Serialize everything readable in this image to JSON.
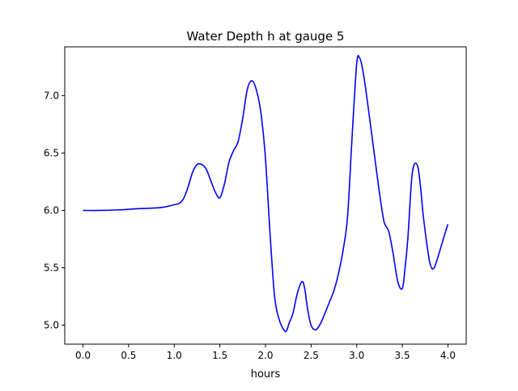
{
  "chart_data": {
    "type": "line",
    "title": "Water Depth h at gauge 5",
    "xlabel": "hours",
    "ylabel": "",
    "xlim": [
      -0.2,
      4.2
    ],
    "ylim": [
      4.835,
      7.425
    ],
    "xticks": [
      0.0,
      0.5,
      1.0,
      1.5,
      2.0,
      2.5,
      3.0,
      3.5,
      4.0
    ],
    "xtick_labels": [
      "0.0",
      "0.5",
      "1.0",
      "1.5",
      "2.0",
      "2.5",
      "3.0",
      "3.5",
      "4.0"
    ],
    "yticks": [
      5.0,
      5.5,
      6.0,
      6.5,
      7.0
    ],
    "ytick_labels": [
      "5.0",
      "5.5",
      "6.0",
      "6.5",
      "7.0"
    ],
    "grid": false,
    "color": "#0000ff",
    "series": [
      {
        "x": [
          0.0,
          0.2,
          0.4,
          0.6,
          0.85,
          1.0,
          1.05,
          1.1,
          1.15,
          1.2,
          1.25,
          1.3,
          1.35,
          1.4,
          1.45,
          1.5,
          1.55,
          1.6,
          1.65,
          1.7,
          1.75,
          1.8,
          1.85,
          1.9,
          1.95,
          2.0,
          2.05,
          2.1,
          2.15,
          2.2,
          2.23,
          2.26,
          2.3,
          2.35,
          2.4,
          2.43,
          2.46,
          2.5,
          2.55,
          2.6,
          2.65,
          2.7,
          2.75,
          2.8,
          2.85,
          2.9,
          2.95,
          3.0,
          3.03,
          3.06,
          3.1,
          3.15,
          3.2,
          3.25,
          3.3,
          3.35,
          3.4,
          3.45,
          3.5,
          3.53,
          3.56,
          3.6,
          3.63,
          3.67,
          3.7,
          3.73,
          3.77,
          3.8,
          3.83,
          3.86,
          3.9,
          3.93,
          3.96,
          4.0
        ],
        "y": [
          6.0,
          6.0,
          6.005,
          6.015,
          6.025,
          6.05,
          6.06,
          6.1,
          6.2,
          6.33,
          6.4,
          6.4,
          6.36,
          6.26,
          6.16,
          6.11,
          6.23,
          6.42,
          6.52,
          6.6,
          6.8,
          7.05,
          7.13,
          7.05,
          6.85,
          6.45,
          5.8,
          5.25,
          5.05,
          4.96,
          4.95,
          5.02,
          5.1,
          5.28,
          5.38,
          5.32,
          5.15,
          5.0,
          4.96,
          5.01,
          5.1,
          5.2,
          5.3,
          5.45,
          5.65,
          5.95,
          6.65,
          7.28,
          7.33,
          7.25,
          7.05,
          6.75,
          6.45,
          6.15,
          5.9,
          5.82,
          5.62,
          5.38,
          5.32,
          5.5,
          5.75,
          6.25,
          6.4,
          6.38,
          6.2,
          5.95,
          5.7,
          5.55,
          5.49,
          5.52,
          5.62,
          5.7,
          5.78,
          5.88
        ]
      }
    ]
  }
}
